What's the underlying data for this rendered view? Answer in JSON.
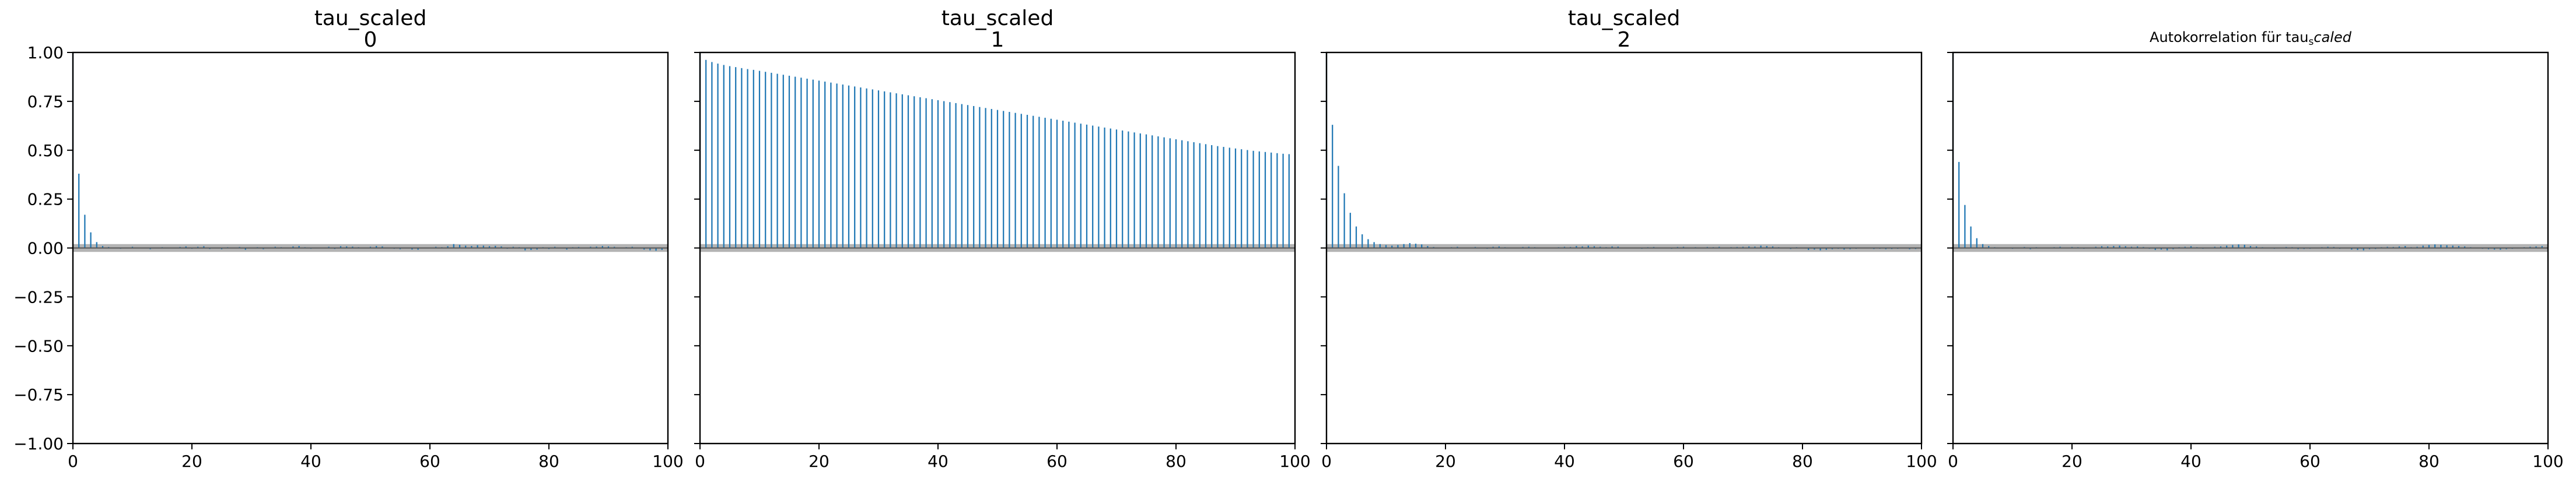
{
  "chart_data": [
    {
      "type": "bar",
      "title_line1": "tau_scaled",
      "title_line2": "0",
      "xlim": [
        0,
        100
      ],
      "ylim": [
        -1.0,
        1.0
      ],
      "x_ticks": [
        0,
        20,
        40,
        60,
        80,
        100
      ],
      "y_ticks": [
        "1.00",
        "0.75",
        "0.50",
        "0.25",
        "0.00",
        "−0.25",
        "−0.50",
        "−0.75",
        "−1.00"
      ],
      "y_tick_values": [
        1.0,
        0.75,
        0.5,
        0.25,
        0.0,
        -0.25,
        -0.5,
        -0.75,
        -1.0
      ],
      "band": 0.02,
      "lags": [
        0,
        1,
        2,
        3,
        4,
        5,
        6,
        7,
        8,
        9,
        10,
        11,
        12,
        13,
        14,
        15,
        16,
        17,
        18,
        19,
        20,
        21,
        22,
        23,
        24,
        25,
        26,
        27,
        28,
        29,
        30,
        31,
        32,
        33,
        34,
        35,
        36,
        37,
        38,
        39,
        40,
        41,
        42,
        43,
        44,
        45,
        46,
        47,
        48,
        49,
        50,
        51,
        52,
        53,
        54,
        55,
        56,
        57,
        58,
        59,
        60,
        61,
        62,
        63,
        64,
        65,
        66,
        67,
        68,
        69,
        70,
        71,
        72,
        73,
        74,
        75,
        76,
        77,
        78,
        79,
        80,
        81,
        82,
        83,
        84,
        85,
        86,
        87,
        88,
        89,
        90,
        91,
        92,
        93,
        94,
        95,
        96,
        97,
        98,
        99
      ],
      "values": [
        1.0,
        0.38,
        0.17,
        0.08,
        0.03,
        0.01,
        0.005,
        0.003,
        -0.004,
        0.002,
        0.006,
        -0.003,
        0.001,
        -0.006,
        0.003,
        0.004,
        -0.003,
        0.002,
        0.005,
        0.008,
        -0.004,
        0.006,
        0.009,
        -0.005,
        0.003,
        -0.006,
        0.004,
        -0.002,
        0.005,
        -0.009,
        0.003,
        0.004,
        -0.006,
        0.002,
        0.006,
        0.004,
        -0.003,
        0.008,
        0.01,
        0.004,
        -0.004,
        -0.003,
        0.002,
        0.006,
        -0.005,
        0.009,
        0.008,
        0.007,
        0.004,
        -0.003,
        0.006,
        0.01,
        0.008,
        0.003,
        -0.004,
        -0.006,
        0.002,
        -0.008,
        -0.009,
        -0.003,
        0.003,
        0.006,
        0.004,
        0.009,
        0.02,
        0.016,
        0.012,
        0.01,
        0.014,
        0.012,
        0.009,
        0.011,
        0.008,
        -0.004,
        0.006,
        0.004,
        -0.012,
        -0.01,
        -0.008,
        0.004,
        -0.005,
        0.006,
        0.003,
        -0.008,
        0.004,
        0.005,
        0.003,
        0.006,
        0.007,
        0.01,
        0.008,
        0.006,
        0.003,
        0.004,
        0.006,
        -0.003,
        -0.008,
        -0.012,
        -0.014,
        -0.01
      ]
    },
    {
      "type": "bar",
      "title_line1": "tau_scaled",
      "title_line2": "1",
      "xlim": [
        0,
        100
      ],
      "ylim": [
        -1.0,
        1.0
      ],
      "x_ticks": [
        0,
        20,
        40,
        60,
        80,
        100
      ],
      "band": 0.02,
      "lags": [
        0,
        1,
        2,
        3,
        4,
        5,
        6,
        7,
        8,
        9,
        10,
        11,
        12,
        13,
        14,
        15,
        16,
        17,
        18,
        19,
        20,
        21,
        22,
        23,
        24,
        25,
        26,
        27,
        28,
        29,
        30,
        31,
        32,
        33,
        34,
        35,
        36,
        37,
        38,
        39,
        40,
        41,
        42,
        43,
        44,
        45,
        46,
        47,
        48,
        49,
        50,
        51,
        52,
        53,
        54,
        55,
        56,
        57,
        58,
        59,
        60,
        61,
        62,
        63,
        64,
        65,
        66,
        67,
        68,
        69,
        70,
        71,
        72,
        73,
        74,
        75,
        76,
        77,
        78,
        79,
        80,
        81,
        82,
        83,
        84,
        85,
        86,
        87,
        88,
        89,
        90,
        91,
        92,
        93,
        94,
        95,
        96,
        97,
        98,
        99
      ],
      "values": [
        1.0,
        0.962,
        0.951,
        0.943,
        0.936,
        0.93,
        0.925,
        0.92,
        0.915,
        0.911,
        0.906,
        0.901,
        0.896,
        0.891,
        0.886,
        0.881,
        0.876,
        0.871,
        0.866,
        0.861,
        0.856,
        0.851,
        0.846,
        0.841,
        0.836,
        0.831,
        0.826,
        0.821,
        0.816,
        0.811,
        0.806,
        0.801,
        0.796,
        0.791,
        0.786,
        0.781,
        0.776,
        0.771,
        0.766,
        0.761,
        0.756,
        0.751,
        0.746,
        0.741,
        0.736,
        0.731,
        0.726,
        0.721,
        0.716,
        0.711,
        0.706,
        0.701,
        0.696,
        0.691,
        0.686,
        0.681,
        0.676,
        0.671,
        0.666,
        0.661,
        0.656,
        0.651,
        0.646,
        0.641,
        0.636,
        0.631,
        0.626,
        0.621,
        0.616,
        0.611,
        0.606,
        0.601,
        0.596,
        0.591,
        0.586,
        0.581,
        0.576,
        0.571,
        0.566,
        0.561,
        0.556,
        0.551,
        0.546,
        0.541,
        0.536,
        0.531,
        0.526,
        0.521,
        0.517,
        0.513,
        0.509,
        0.505,
        0.501,
        0.497,
        0.494,
        0.491,
        0.488,
        0.485,
        0.482,
        0.48
      ]
    },
    {
      "type": "bar",
      "title_line1": "tau_scaled",
      "title_line2": "2",
      "xlim": [
        0,
        100
      ],
      "ylim": [
        -1.0,
        1.0
      ],
      "x_ticks": [
        0,
        20,
        40,
        60,
        80,
        100
      ],
      "band": 0.02,
      "lags": [
        0,
        1,
        2,
        3,
        4,
        5,
        6,
        7,
        8,
        9,
        10,
        11,
        12,
        13,
        14,
        15,
        16,
        17,
        18,
        19,
        20,
        21,
        22,
        23,
        24,
        25,
        26,
        27,
        28,
        29,
        30,
        31,
        32,
        33,
        34,
        35,
        36,
        37,
        38,
        39,
        40,
        41,
        42,
        43,
        44,
        45,
        46,
        47,
        48,
        49,
        50,
        51,
        52,
        53,
        54,
        55,
        56,
        57,
        58,
        59,
        60,
        61,
        62,
        63,
        64,
        65,
        66,
        67,
        68,
        69,
        70,
        71,
        72,
        73,
        74,
        75,
        76,
        77,
        78,
        79,
        80,
        81,
        82,
        83,
        84,
        85,
        86,
        87,
        88,
        89,
        90,
        91,
        92,
        93,
        94,
        95,
        96,
        97,
        98,
        99
      ],
      "values": [
        1.0,
        0.63,
        0.42,
        0.28,
        0.18,
        0.11,
        0.07,
        0.045,
        0.03,
        0.02,
        0.015,
        0.012,
        0.015,
        0.02,
        0.025,
        0.022,
        0.018,
        0.01,
        0.005,
        0.003,
        -0.002,
        0.004,
        0.006,
        -0.003,
        0.002,
        0.005,
        0.003,
        -0.004,
        0.006,
        0.008,
        0.004,
        0.003,
        -0.002,
        0.005,
        0.006,
        0.004,
        0.003,
        0.002,
        -0.003,
        0.004,
        0.006,
        0.005,
        0.01,
        0.008,
        0.012,
        0.009,
        0.006,
        0.004,
        0.008,
        0.007,
        0.003,
        0.002,
        -0.003,
        -0.004,
        0.004,
        0.005,
        0.003,
        0.002,
        -0.004,
        0.005,
        0.006,
        0.003,
        0.004,
        0.002,
        0.005,
        0.004,
        0.006,
        -0.003,
        0.004,
        0.005,
        0.006,
        0.008,
        0.007,
        0.012,
        0.01,
        0.008,
        0.004,
        -0.003,
        -0.005,
        0.004,
        0.003,
        -0.01,
        -0.008,
        -0.012,
        -0.009,
        -0.006,
        -0.004,
        -0.008,
        -0.006,
        -0.004,
        -0.003,
        -0.002,
        -0.005,
        -0.004,
        -0.006,
        -0.005,
        -0.004,
        -0.003,
        -0.006,
        -0.005
      ]
    },
    {
      "type": "bar",
      "title": "Autokorrelation für tau",
      "title_subscript": "s",
      "title_suffix": "caled",
      "xlim": [
        0,
        100
      ],
      "ylim": [
        -1.0,
        1.0
      ],
      "x_ticks": [
        0,
        20,
        40,
        60,
        80,
        100
      ],
      "band": 0.02,
      "lags": [
        0,
        1,
        2,
        3,
        4,
        5,
        6,
        7,
        8,
        9,
        10,
        11,
        12,
        13,
        14,
        15,
        16,
        17,
        18,
        19,
        20,
        21,
        22,
        23,
        24,
        25,
        26,
        27,
        28,
        29,
        30,
        31,
        32,
        33,
        34,
        35,
        36,
        37,
        38,
        39,
        40,
        41,
        42,
        43,
        44,
        45,
        46,
        47,
        48,
        49,
        50,
        51,
        52,
        53,
        54,
        55,
        56,
        57,
        58,
        59,
        60,
        61,
        62,
        63,
        64,
        65,
        66,
        67,
        68,
        69,
        70,
        71,
        72,
        73,
        74,
        75,
        76,
        77,
        78,
        79,
        80,
        81,
        82,
        83,
        84,
        85,
        86,
        87,
        88,
        89,
        90,
        91,
        92,
        93,
        94,
        95,
        96,
        97,
        98,
        99
      ],
      "values": [
        1.0,
        0.44,
        0.22,
        0.11,
        0.05,
        0.02,
        0.01,
        0.004,
        -0.003,
        0.002,
        -0.004,
        0.003,
        0.005,
        -0.006,
        0.004,
        0.002,
        -0.003,
        0.004,
        0.006,
        -0.002,
        0.005,
        0.004,
        -0.004,
        0.003,
        0.006,
        0.009,
        0.008,
        0.01,
        0.012,
        0.009,
        0.006,
        0.008,
        0.005,
        -0.004,
        -0.01,
        -0.008,
        -0.012,
        -0.006,
        0.004,
        0.006,
        0.009,
        0.004,
        -0.004,
        0.003,
        0.006,
        0.008,
        0.012,
        0.015,
        0.018,
        0.016,
        0.01,
        0.008,
        0.004,
        -0.003,
        -0.004,
        0.003,
        0.005,
        0.004,
        -0.006,
        -0.005,
        -0.004,
        -0.003,
        0.004,
        0.006,
        0.005,
        -0.004,
        0.003,
        -0.008,
        -0.01,
        -0.012,
        -0.006,
        -0.005,
        0.004,
        0.006,
        0.005,
        0.008,
        0.01,
        0.004,
        0.006,
        0.012,
        0.015,
        0.018,
        0.016,
        0.014,
        0.012,
        0.01,
        0.008,
        0.004,
        0.003,
        -0.004,
        -0.006,
        -0.008,
        -0.009,
        -0.006,
        -0.004,
        0.003,
        0.004,
        0.006,
        0.008,
        0.01
      ]
    }
  ],
  "colors": {
    "bar": "#1f77b4",
    "band": "#b4b4b4",
    "zero_line": "#555555",
    "axes": "#000000"
  }
}
